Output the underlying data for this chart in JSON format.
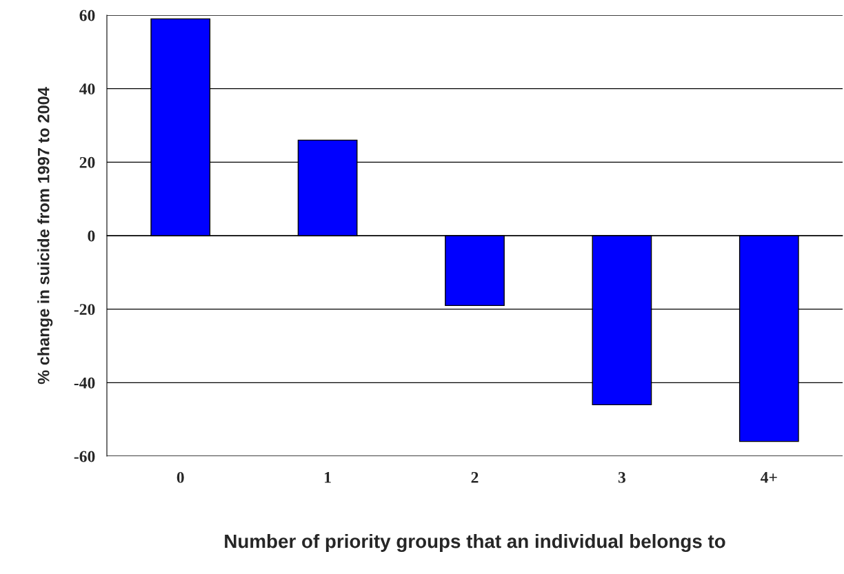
{
  "chart_data": {
    "type": "bar",
    "xlabel": "Number of priority groups that an individual belongs to",
    "ylabel": "% change in suicide from 1997 to 2004",
    "categories": [
      "0",
      "1",
      "2",
      "3",
      "4+"
    ],
    "values": [
      59,
      26,
      -19,
      -46,
      -56
    ],
    "color": "#0000ff",
    "ylim": [
      -60,
      60
    ],
    "yticks": [
      -60,
      -40,
      -20,
      0,
      20,
      40,
      60
    ],
    "grid": "y",
    "legend": false
  }
}
